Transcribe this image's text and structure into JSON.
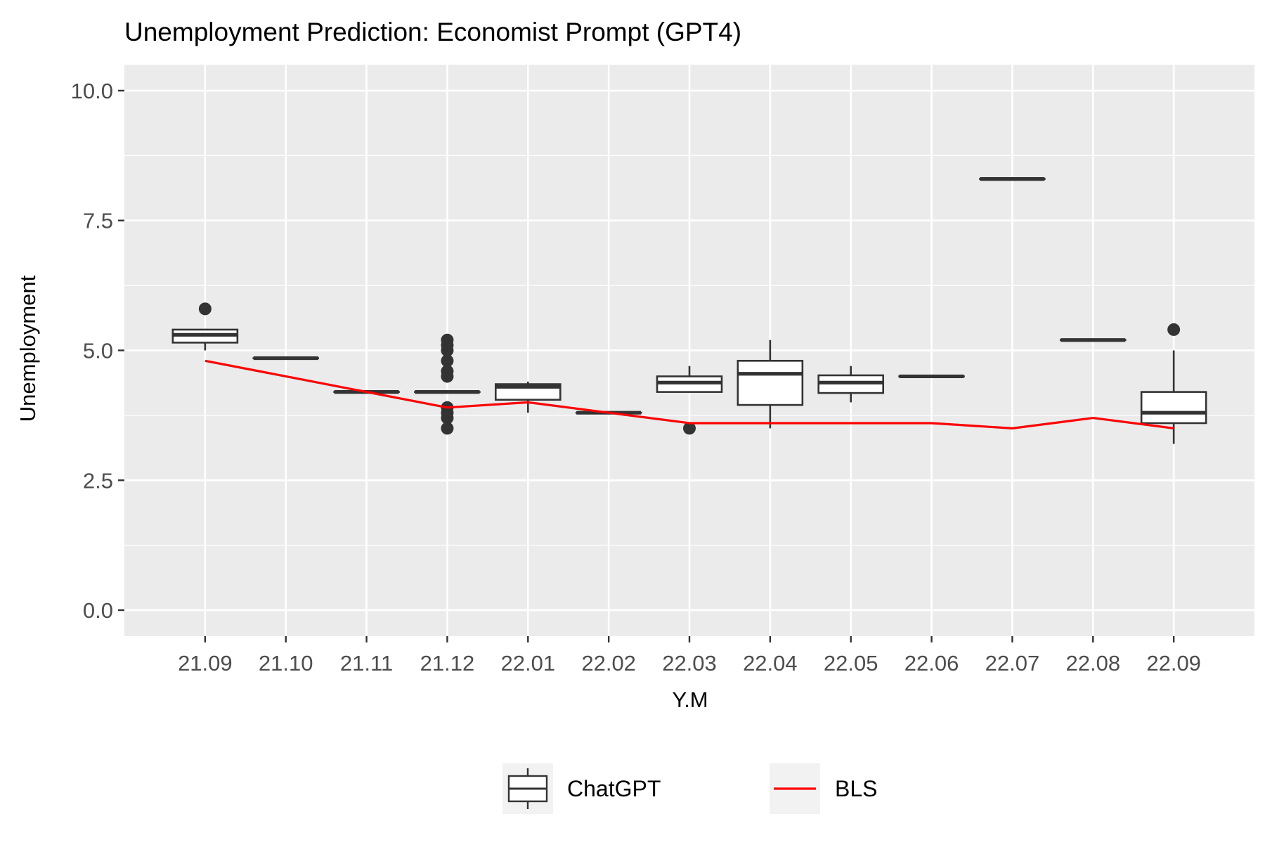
{
  "colors": {
    "panel": "#ebebeb",
    "grid": "#ffffff",
    "box_stroke": "#333333",
    "box_fill": "#ffffff",
    "bls_line": "#ff0000",
    "tick_text": "#4d4d4d"
  },
  "chart_data": {
    "type": "box",
    "title": "Unemployment Prediction: Economist Prompt (GPT4)",
    "xlabel": "Y.M",
    "ylabel": "Unemployment",
    "ylim": [
      -0.5,
      10.5
    ],
    "yticks": [
      "0.0",
      "2.5",
      "5.0",
      "7.5",
      "10.0"
    ],
    "ytick_values": [
      0,
      2.5,
      5,
      7.5,
      10
    ],
    "grid": true,
    "legend_position": "bottom",
    "categories": [
      "21.09",
      "21.10",
      "21.11",
      "21.12",
      "22.01",
      "22.02",
      "22.03",
      "22.04",
      "22.05",
      "22.06",
      "22.07",
      "22.08",
      "22.09"
    ],
    "series": [
      {
        "name": "ChatGPT",
        "type": "boxplot",
        "boxes": [
          {
            "category": "21.09",
            "lower_whisker": 5.0,
            "q1": 5.15,
            "median": 5.3,
            "q3": 5.4,
            "upper_whisker": 5.4,
            "outliers": [
              5.8
            ]
          },
          {
            "category": "21.10",
            "lower_whisker": 4.85,
            "q1": 4.85,
            "median": 4.85,
            "q3": 4.85,
            "upper_whisker": 4.85,
            "outliers": []
          },
          {
            "category": "21.11",
            "lower_whisker": 4.2,
            "q1": 4.2,
            "median": 4.2,
            "q3": 4.2,
            "upper_whisker": 4.2,
            "outliers": []
          },
          {
            "category": "21.12",
            "lower_whisker": 4.2,
            "q1": 4.2,
            "median": 4.2,
            "q3": 4.2,
            "upper_whisker": 4.2,
            "outliers": [
              5.2,
              5.1,
              5.0,
              4.8,
              4.6,
              4.5,
              3.9,
              3.8,
              3.7,
              3.5
            ]
          },
          {
            "category": "22.01",
            "lower_whisker": 3.8,
            "q1": 4.05,
            "median": 4.3,
            "q3": 4.35,
            "upper_whisker": 4.4,
            "outliers": []
          },
          {
            "category": "22.02",
            "lower_whisker": 3.8,
            "q1": 3.8,
            "median": 3.8,
            "q3": 3.8,
            "upper_whisker": 3.8,
            "outliers": []
          },
          {
            "category": "22.03",
            "lower_whisker": 4.2,
            "q1": 4.2,
            "median": 4.38,
            "q3": 4.5,
            "upper_whisker": 4.7,
            "outliers": [
              3.5
            ]
          },
          {
            "category": "22.04",
            "lower_whisker": 3.5,
            "q1": 3.95,
            "median": 4.55,
            "q3": 4.8,
            "upper_whisker": 5.2,
            "outliers": []
          },
          {
            "category": "22.05",
            "lower_whisker": 4.0,
            "q1": 4.18,
            "median": 4.38,
            "q3": 4.52,
            "upper_whisker": 4.7,
            "outliers": []
          },
          {
            "category": "22.06",
            "lower_whisker": 4.5,
            "q1": 4.5,
            "median": 4.5,
            "q3": 4.5,
            "upper_whisker": 4.5,
            "outliers": []
          },
          {
            "category": "22.07",
            "lower_whisker": 8.3,
            "q1": 8.3,
            "median": 8.3,
            "q3": 8.3,
            "upper_whisker": 8.3,
            "outliers": []
          },
          {
            "category": "22.08",
            "lower_whisker": 5.2,
            "q1": 5.2,
            "median": 5.2,
            "q3": 5.2,
            "upper_whisker": 5.2,
            "outliers": []
          },
          {
            "category": "22.09",
            "lower_whisker": 3.2,
            "q1": 3.6,
            "median": 3.8,
            "q3": 4.2,
            "upper_whisker": 5.0,
            "outliers": [
              5.4
            ]
          }
        ]
      },
      {
        "name": "BLS",
        "type": "line",
        "values": [
          4.8,
          4.5,
          4.2,
          3.9,
          4.0,
          3.8,
          3.6,
          3.6,
          3.6,
          3.6,
          3.5,
          3.7,
          3.5
        ]
      }
    ],
    "legend": [
      "ChatGPT",
      "BLS"
    ]
  }
}
